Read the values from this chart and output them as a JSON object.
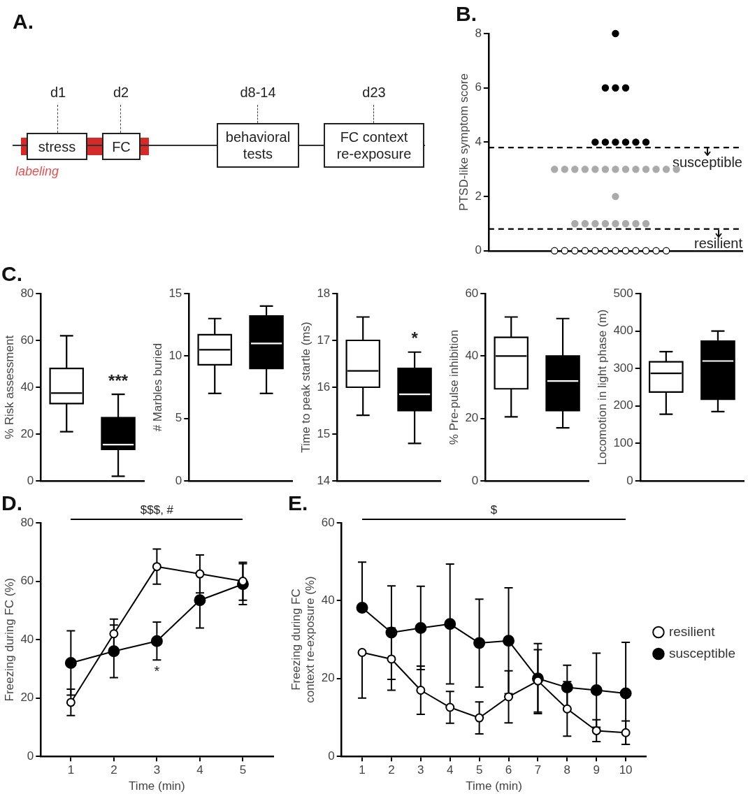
{
  "chart_data": [
    {
      "type": "other",
      "title": "A.",
      "annotations": [
        "d1",
        "d2",
        "d8-14",
        "d23",
        "stress",
        "FC",
        "behavioral\ntests",
        "FC context\nre-exposure",
        "labeling"
      ]
    },
    {
      "type": "scatter",
      "title": "B.",
      "ylabel": "PTSD-like symptom score",
      "categories": [
        null,
        null,
        null,
        null,
        null,
        null,
        null,
        null,
        null,
        null,
        null,
        null,
        null,
        null,
        null,
        null,
        null,
        null,
        null,
        null,
        null,
        null,
        null,
        null,
        null
      ],
      "ylim": [
        0,
        8
      ],
      "yticks": [
        0,
        2,
        4,
        6,
        8
      ],
      "tick_labels": "y",
      "marker": "circle",
      "series": [
        {
          "color": "#000000",
          "values": [
            null,
            null,
            null,
            null,
            null,
            null,
            null,
            null,
            null,
            null,
            null,
            null,
            8,
            null,
            null,
            null,
            null,
            null,
            null,
            null,
            null,
            null,
            null,
            null,
            null
          ]
        },
        {
          "color": "#000000",
          "values": [
            null,
            null,
            null,
            null,
            null,
            null,
            null,
            null,
            null,
            null,
            null,
            6,
            6,
            6,
            null,
            null,
            null,
            null,
            null,
            null,
            null,
            null,
            null,
            null,
            null
          ]
        },
        {
          "color": "#000000",
          "values": [
            null,
            null,
            null,
            null,
            null,
            null,
            null,
            null,
            null,
            null,
            4,
            4,
            4,
            4,
            4,
            4,
            null,
            null,
            null,
            null,
            null,
            null,
            null,
            null,
            null
          ]
        },
        {
          "color": "#aaaaaa",
          "values": [
            null,
            null,
            null,
            null,
            null,
            null,
            3,
            3,
            3,
            3,
            3,
            3,
            3,
            3,
            3,
            3,
            3,
            3,
            3,
            null,
            null,
            null,
            null,
            null,
            null
          ]
        },
        {
          "color": "#aaaaaa",
          "values": [
            null,
            null,
            null,
            null,
            null,
            null,
            null,
            null,
            null,
            null,
            null,
            null,
            2,
            null,
            null,
            null,
            null,
            null,
            null,
            null,
            null,
            null,
            null,
            null,
            null
          ]
        },
        {
          "color": "#aaaaaa",
          "values": [
            null,
            null,
            null,
            null,
            null,
            null,
            null,
            null,
            1,
            1,
            1,
            1,
            1,
            1,
            1,
            1,
            null,
            null,
            null,
            null,
            null,
            null,
            null,
            null,
            null
          ]
        },
        {
          "color": "#ffffff",
          "values": [
            null,
            null,
            null,
            null,
            null,
            null,
            0,
            0,
            0,
            0,
            0,
            0,
            0,
            0,
            0,
            0,
            0,
            0,
            null,
            null,
            null,
            null,
            null,
            null,
            null
          ]
        }
      ],
      "ref_lines": [
        {
          "axis": "y",
          "value": 3.8,
          "label": "susceptible",
          "line_style": "dashed"
        },
        {
          "axis": "y",
          "value": 0.8,
          "label": "resilient",
          "line_style": "dashed"
        }
      ]
    },
    {
      "type": "box",
      "title": "C.",
      "ylabel": "% Risk assessment",
      "categories": [
        null,
        null
      ],
      "ylim": [
        0,
        80
      ],
      "yticks": [
        0,
        20,
        40,
        60,
        80
      ],
      "tick_labels": "y",
      "colors": [
        "#ffffff",
        "#000000"
      ],
      "boxes": [
        {
          "low": 21,
          "q1": 33,
          "median": 37.5,
          "q3": 48,
          "high": 62
        },
        {
          "low": 2,
          "q1": 13.5,
          "median": 15.5,
          "q3": 27,
          "high": 37
        }
      ],
      "annotations": [
        "***"
      ]
    },
    {
      "type": "box",
      "ylabel": "# Marbles buried",
      "categories": [
        null,
        null
      ],
      "ylim": [
        0,
        15
      ],
      "yticks": [
        0,
        5,
        10,
        15
      ],
      "tick_labels": "y",
      "colors": [
        "#ffffff",
        "#000000"
      ],
      "boxes": [
        {
          "low": 7,
          "q1": 9.3,
          "median": 10.5,
          "q3": 11.7,
          "high": 13
        },
        {
          "low": 7,
          "q1": 9,
          "median": 11,
          "q3": 13.2,
          "high": 14
        }
      ]
    },
    {
      "type": "box",
      "ylabel": "Time to peak startle (ms)",
      "categories": [
        null,
        null
      ],
      "ylim": [
        14,
        18
      ],
      "yticks": [
        14,
        15,
        16,
        17,
        18
      ],
      "tick_labels": "y",
      "colors": [
        "#ffffff",
        "#000000"
      ],
      "boxes": [
        {
          "low": 15.4,
          "q1": 16,
          "median": 16.35,
          "q3": 17,
          "high": 17.5
        },
        {
          "low": 14.8,
          "q1": 15.5,
          "median": 15.85,
          "q3": 16.4,
          "high": 16.75
        }
      ],
      "annotations": [
        "*"
      ]
    },
    {
      "type": "box",
      "ylabel": "% Pre-pulse inhibition",
      "categories": [
        null,
        null
      ],
      "ylim": [
        0,
        60
      ],
      "yticks": [
        0,
        20,
        40,
        60
      ],
      "tick_labels": "y",
      "colors": [
        "#ffffff",
        "#000000"
      ],
      "boxes": [
        {
          "low": 20.5,
          "q1": 29.5,
          "median": 40,
          "q3": 46,
          "high": 52.5
        },
        {
          "low": 17,
          "q1": 22.5,
          "median": 32,
          "q3": 40,
          "high": 52
        }
      ]
    },
    {
      "type": "box",
      "ylabel": "Locomotion in light phase (m)",
      "categories": [
        null,
        null
      ],
      "ylim": [
        0,
        500
      ],
      "yticks": [
        0,
        100,
        200,
        300,
        400,
        500
      ],
      "tick_labels": "y",
      "colors": [
        "#ffffff",
        "#000000"
      ],
      "boxes": [
        {
          "low": 178,
          "q1": 237,
          "median": 287,
          "q3": 318,
          "high": 345
        },
        {
          "low": 185,
          "q1": 218,
          "median": 320,
          "q3": 373,
          "high": 400
        }
      ]
    },
    {
      "type": "line",
      "title": "D.",
      "xlabel": "Time (min)",
      "ylabel": "Freezing during FC (%)",
      "x": [
        1,
        2,
        3,
        4,
        5
      ],
      "xlim": [
        0.3,
        5.7
      ],
      "xticks": [
        1,
        2,
        3,
        4,
        5
      ],
      "ylim": [
        0,
        80
      ],
      "yticks": [
        0,
        20,
        40,
        60,
        80
      ],
      "marker": "circle",
      "line_style": "solid",
      "series": [
        {
          "color": "#ffffff",
          "values": [
            18.5,
            42,
            65,
            62.5,
            60
          ],
          "errors": [
            4.5,
            5,
            6,
            6.5,
            6.5
          ]
        },
        {
          "color": "#000000",
          "values": [
            32,
            36,
            39.5,
            53.5,
            59
          ],
          "errors": [
            11,
            9,
            6.5,
            9.5,
            7
          ]
        }
      ],
      "annotations": [
        "$$$, #",
        {
          "text": "*",
          "x": 3,
          "y": 39.5
        }
      ]
    },
    {
      "type": "line",
      "title": "E.",
      "xlabel": "Time (min)",
      "ylabel": "Freezing during FC\ncontext re-exposure (%)",
      "x": [
        1,
        2,
        3,
        4,
        5,
        6,
        7,
        8,
        9,
        10
      ],
      "xlim": [
        0.3,
        10.7
      ],
      "xticks": [
        1,
        2,
        3,
        4,
        5,
        6,
        7,
        8,
        9,
        10
      ],
      "ylim": [
        0,
        60
      ],
      "yticks": [
        0,
        20,
        40,
        60
      ],
      "marker": "circle",
      "line_style": "solid",
      "legend": "right",
      "series": [
        {
          "name": "resilient",
          "color": "#ffffff",
          "values": [
            26.7,
            25,
            17,
            12.6,
            9.9,
            15.3,
            19.4,
            12.2,
            6.6,
            6.1
          ],
          "errors": [
            [
              15,
              26.7
            ],
            8,
            6.2,
            4.1,
            4.1,
            6.7,
            8,
            7,
            2.8,
            3
          ]
        },
        {
          "name": "susceptible",
          "color": "#000000",
          "values": [
            38.2,
            31.8,
            33,
            34,
            29.1,
            29.7,
            20,
            17.7,
            17,
            16.2
          ],
          "errors": [
            [
              38.2,
              49.9
            ],
            12,
            10.7,
            15.4,
            11.3,
            13.6,
            9,
            5.7,
            9.5,
            13.1
          ]
        }
      ],
      "annotations": [
        "$"
      ]
    }
  ]
}
